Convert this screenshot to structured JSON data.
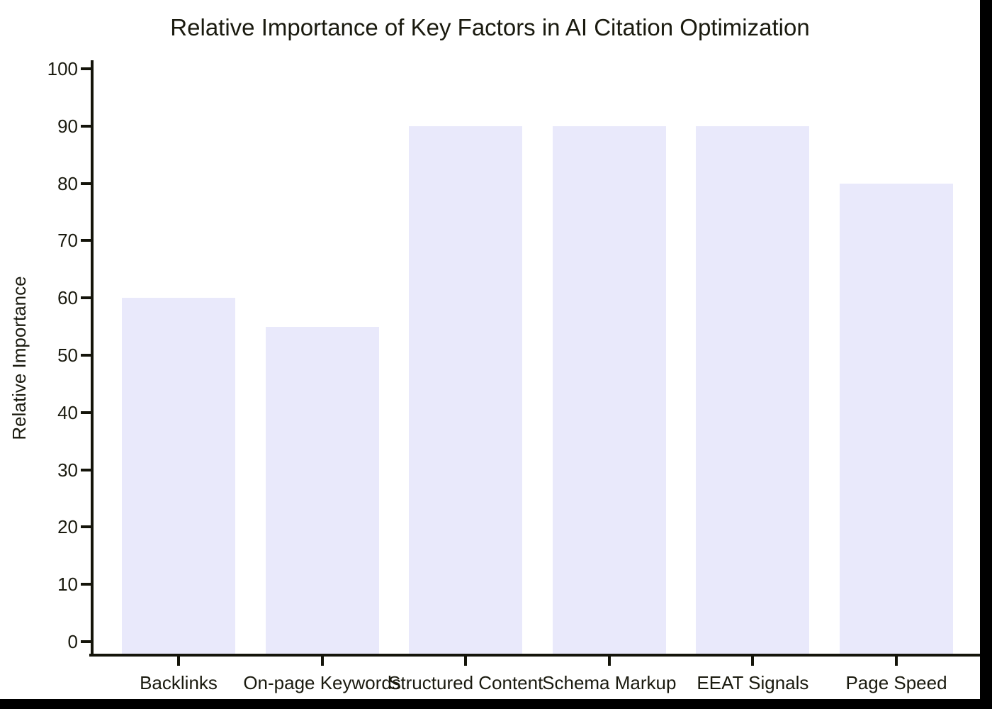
{
  "chart_data": {
    "type": "bar",
    "title": "Relative Importance of Key Factors in AI Citation Optimization",
    "xlabel": "",
    "ylabel": "Relative Importance",
    "categories": [
      "Backlinks",
      "On-page Keywords",
      "Structured Content",
      "Schema Markup",
      "EEAT Signals",
      "Page Speed"
    ],
    "values": [
      60,
      55,
      90,
      90,
      90,
      80
    ],
    "ylim": [
      0,
      100
    ],
    "yticks": [
      0,
      10,
      20,
      30,
      40,
      50,
      60,
      70,
      80,
      90,
      100
    ],
    "grid": false,
    "legend": false,
    "bar_color": "#e9e9fb",
    "axis_color": "#14140a",
    "text_color": "#1a1a0f"
  }
}
